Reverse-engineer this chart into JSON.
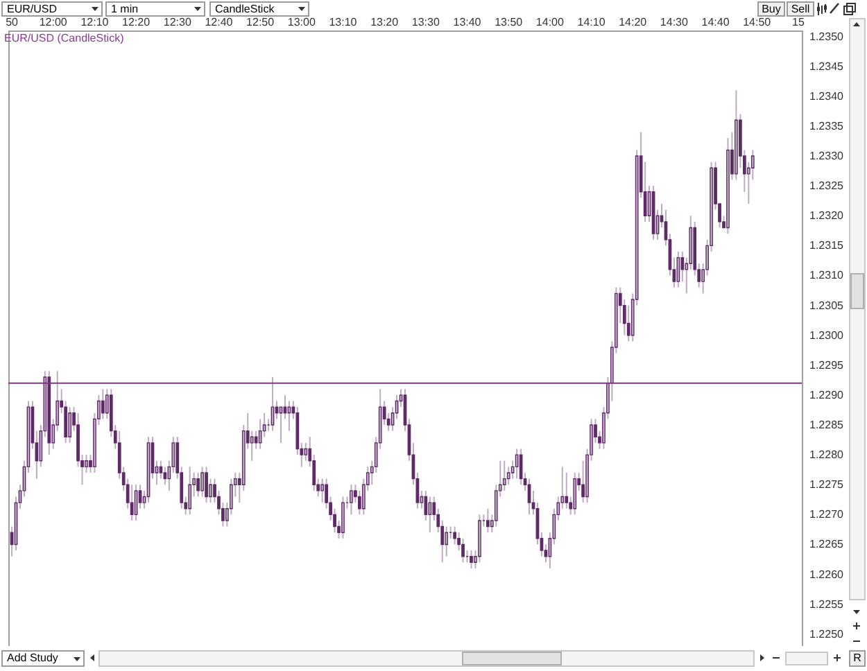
{
  "chart_data": {
    "type": "candlestick",
    "title": "EUR/USD (CandleStick)",
    "categories": [
      "50",
      null,
      null,
      null,
      null,
      null,
      null,
      null,
      null,
      null,
      "12:00",
      null,
      null,
      null,
      null,
      null,
      null,
      null,
      null,
      null,
      "12:10",
      null,
      null,
      null,
      null,
      null,
      null,
      null,
      null,
      null,
      "12:20",
      null,
      null,
      null,
      null,
      null,
      null,
      null,
      null,
      null,
      "12:30",
      null,
      null,
      null,
      null,
      null,
      null,
      null,
      null,
      null,
      "12:40",
      null,
      null,
      null,
      null,
      null,
      null,
      null,
      null,
      null,
      "12:50",
      null,
      null,
      null,
      null,
      null,
      null,
      null,
      null,
      null,
      "13:00",
      null,
      null,
      null,
      null,
      null,
      null,
      null,
      null,
      null,
      "13:10",
      null,
      null,
      null,
      null,
      null,
      null,
      null,
      null,
      null,
      "13:20",
      null,
      null,
      null,
      null,
      null,
      null,
      null,
      null,
      null,
      "13:30",
      null,
      null,
      null,
      null,
      null,
      null,
      null,
      null,
      null,
      "13:40",
      null,
      null,
      null,
      null,
      null,
      null,
      null,
      null,
      null,
      "13:50",
      null,
      null,
      null,
      null,
      null,
      null,
      null,
      null,
      null,
      "14:00",
      null,
      null,
      null,
      null,
      null,
      null,
      null,
      null,
      null,
      "14:10",
      null,
      null,
      null,
      null,
      null,
      null,
      null,
      null,
      null,
      "14:20",
      null,
      null,
      null,
      null,
      null,
      null,
      null,
      null,
      null,
      "14:30",
      null,
      null,
      null,
      null,
      null,
      null,
      null,
      null,
      null,
      "14:40",
      null,
      null,
      null,
      null,
      null,
      null,
      null,
      null,
      null,
      "14:50",
      null,
      null,
      null,
      null,
      null,
      null,
      null,
      null,
      null,
      "15"
    ],
    "ohlc": [
      [
        1.2267,
        1.2268,
        1.2263,
        1.2265
      ],
      [
        1.2265,
        1.2273,
        1.2264,
        1.2272
      ],
      [
        1.2272,
        1.2275,
        1.2271,
        1.2274
      ],
      [
        1.2274,
        1.2279,
        1.2273,
        1.2278
      ],
      [
        1.2278,
        1.2289,
        1.2277,
        1.2288
      ],
      [
        1.2288,
        1.2289,
        1.2281,
        1.2282
      ],
      [
        1.2282,
        1.2284,
        1.2276,
        1.2279
      ],
      [
        1.2279,
        1.2285,
        1.2278,
        1.2284
      ],
      [
        1.2284,
        1.2294,
        1.2283,
        1.2293
      ],
      [
        1.2293,
        1.2294,
        1.228,
        1.2282
      ],
      [
        1.2282,
        1.2286,
        1.2281,
        1.2285
      ],
      [
        1.2285,
        1.2294,
        1.2284,
        1.2289
      ],
      [
        1.2289,
        1.2291,
        1.2287,
        1.2288
      ],
      [
        1.2288,
        1.2289,
        1.2282,
        1.2283
      ],
      [
        1.2283,
        1.2288,
        1.2282,
        1.2287
      ],
      [
        1.2287,
        1.2288,
        1.2284,
        1.2285
      ],
      [
        1.2285,
        1.2287,
        1.2278,
        1.2279
      ],
      [
        1.2279,
        1.228,
        1.2275,
        1.2278
      ],
      [
        1.2278,
        1.228,
        1.2277,
        1.2279
      ],
      [
        1.2279,
        1.228,
        1.2277,
        1.2278
      ],
      [
        1.2278,
        1.2287,
        1.2277,
        1.2286
      ],
      [
        1.2286,
        1.229,
        1.2285,
        1.2289
      ],
      [
        1.2289,
        1.2291,
        1.2286,
        1.2287
      ],
      [
        1.2287,
        1.2291,
        1.2286,
        1.229
      ],
      [
        1.229,
        1.2291,
        1.2283,
        1.2284
      ],
      [
        1.2284,
        1.2285,
        1.2281,
        1.2282
      ],
      [
        1.2282,
        1.2284,
        1.2276,
        1.2277
      ],
      [
        1.2277,
        1.2278,
        1.2274,
        1.2275
      ],
      [
        1.2275,
        1.2276,
        1.2271,
        1.2272
      ],
      [
        1.2272,
        1.2275,
        1.2269,
        1.227
      ],
      [
        1.227,
        1.2275,
        1.2269,
        1.2274
      ],
      [
        1.2274,
        1.2275,
        1.2271,
        1.2272
      ],
      [
        1.2272,
        1.2274,
        1.2271,
        1.2273
      ],
      [
        1.2273,
        1.2283,
        1.2272,
        1.2282
      ],
      [
        1.2282,
        1.2283,
        1.2276,
        1.2277
      ],
      [
        1.2277,
        1.2279,
        1.2275,
        1.2278
      ],
      [
        1.2278,
        1.2279,
        1.2276,
        1.2277
      ],
      [
        1.2277,
        1.2278,
        1.2275,
        1.2276
      ],
      [
        1.2276,
        1.2279,
        1.2274,
        1.2278
      ],
      [
        1.2278,
        1.2283,
        1.2277,
        1.2282
      ],
      [
        1.2282,
        1.2283,
        1.2276,
        1.2277
      ],
      [
        1.2277,
        1.2278,
        1.2271,
        1.2272
      ],
      [
        1.2272,
        1.2273,
        1.227,
        1.2271
      ],
      [
        1.2271,
        1.2278,
        1.227,
        1.2275
      ],
      [
        1.2275,
        1.2277,
        1.2273,
        1.2276
      ],
      [
        1.2276,
        1.2277,
        1.2273,
        1.2274
      ],
      [
        1.2274,
        1.2278,
        1.2273,
        1.2277
      ],
      [
        1.2277,
        1.2278,
        1.2272,
        1.2273
      ],
      [
        1.2273,
        1.2276,
        1.2272,
        1.2275
      ],
      [
        1.2275,
        1.2276,
        1.2272,
        1.2273
      ],
      [
        1.2273,
        1.2274,
        1.227,
        1.2271
      ],
      [
        1.2271,
        1.2272,
        1.2268,
        1.2269
      ],
      [
        1.2269,
        1.2272,
        1.2268,
        1.2271
      ],
      [
        1.2271,
        1.2276,
        1.227,
        1.2275
      ],
      [
        1.2275,
        1.2277,
        1.2273,
        1.2276
      ],
      [
        1.2276,
        1.2277,
        1.2272,
        1.2275
      ],
      [
        1.2275,
        1.2285,
        1.2274,
        1.2284
      ],
      [
        1.2284,
        1.2287,
        1.2281,
        1.2282
      ],
      [
        1.2282,
        1.2284,
        1.2279,
        1.2283
      ],
      [
        1.2283,
        1.2284,
        1.2281,
        1.2282
      ],
      [
        1.2282,
        1.2286,
        1.2281,
        1.2284
      ],
      [
        1.2284,
        1.2287,
        1.2283,
        1.2285
      ],
      [
        1.2285,
        1.2286,
        1.2284,
        1.2285
      ],
      [
        1.2285,
        1.2293,
        1.2284,
        1.2288
      ],
      [
        1.2288,
        1.2289,
        1.2286,
        1.2287
      ],
      [
        1.2287,
        1.2288,
        1.2282,
        1.2288
      ],
      [
        1.2288,
        1.229,
        1.2286,
        1.2287
      ],
      [
        1.2287,
        1.2289,
        1.2284,
        1.2288
      ],
      [
        1.2288,
        1.2289,
        1.2286,
        1.2287
      ],
      [
        1.2287,
        1.2288,
        1.228,
        1.2281
      ],
      [
        1.2281,
        1.2282,
        1.2278,
        1.228
      ],
      [
        1.228,
        1.2282,
        1.2279,
        1.2281
      ],
      [
        1.2281,
        1.2283,
        1.2278,
        1.2279
      ],
      [
        1.2279,
        1.228,
        1.2274,
        1.2275
      ],
      [
        1.2275,
        1.2276,
        1.2273,
        1.2274
      ],
      [
        1.2274,
        1.2276,
        1.2272,
        1.2275
      ],
      [
        1.2275,
        1.2276,
        1.2271,
        1.2272
      ],
      [
        1.2272,
        1.2273,
        1.2269,
        1.227
      ],
      [
        1.227,
        1.2271,
        1.2267,
        1.2268
      ],
      [
        1.2268,
        1.2269,
        1.2266,
        1.2267
      ],
      [
        1.2267,
        1.2273,
        1.2266,
        1.2272
      ],
      [
        1.2272,
        1.2273,
        1.2271,
        1.2272
      ],
      [
        1.2272,
        1.2275,
        1.227,
        1.2274
      ],
      [
        1.2274,
        1.2275,
        1.2272,
        1.2273
      ],
      [
        1.2273,
        1.2274,
        1.227,
        1.2271
      ],
      [
        1.2271,
        1.2276,
        1.227,
        1.2275
      ],
      [
        1.2275,
        1.2278,
        1.2274,
        1.2277
      ],
      [
        1.2277,
        1.2279,
        1.2275,
        1.2278
      ],
      [
        1.2278,
        1.2283,
        1.2277,
        1.2282
      ],
      [
        1.2282,
        1.2291,
        1.2281,
        1.2288
      ],
      [
        1.2288,
        1.2289,
        1.2285,
        1.2286
      ],
      [
        1.2286,
        1.2287,
        1.2284,
        1.2285
      ],
      [
        1.2285,
        1.2288,
        1.2284,
        1.2287
      ],
      [
        1.2287,
        1.229,
        1.2286,
        1.2289
      ],
      [
        1.2289,
        1.2291,
        1.2288,
        1.229
      ],
      [
        1.229,
        1.2291,
        1.2284,
        1.2285
      ],
      [
        1.2285,
        1.2286,
        1.2279,
        1.228
      ],
      [
        1.228,
        1.2282,
        1.2275,
        1.2276
      ],
      [
        1.2276,
        1.2277,
        1.2271,
        1.2272
      ],
      [
        1.2272,
        1.2274,
        1.2271,
        1.2273
      ],
      [
        1.2273,
        1.2274,
        1.2269,
        1.227
      ],
      [
        1.227,
        1.2273,
        1.2267,
        1.2272
      ],
      [
        1.2272,
        1.2273,
        1.2269,
        1.227
      ],
      [
        1.227,
        1.2271,
        1.2267,
        1.2268
      ],
      [
        1.2268,
        1.2269,
        1.2262,
        1.2265
      ],
      [
        1.2265,
        1.2268,
        1.2263,
        1.2267
      ],
      [
        1.2267,
        1.2268,
        1.2266,
        1.2267
      ],
      [
        1.2267,
        1.2268,
        1.2265,
        1.2266
      ],
      [
        1.2266,
        1.2267,
        1.2264,
        1.2265
      ],
      [
        1.2265,
        1.2266,
        1.2262,
        1.2263
      ],
      [
        1.2263,
        1.2264,
        1.2262,
        1.2263
      ],
      [
        1.2263,
        1.2264,
        1.2261,
        1.2262
      ],
      [
        1.2262,
        1.2264,
        1.2261,
        1.2263
      ],
      [
        1.2263,
        1.227,
        1.2262,
        1.2269
      ],
      [
        1.2269,
        1.227,
        1.2268,
        1.2269
      ],
      [
        1.2269,
        1.2271,
        1.2267,
        1.2268
      ],
      [
        1.2268,
        1.227,
        1.2267,
        1.2269
      ],
      [
        1.2269,
        1.2275,
        1.2268,
        1.2274
      ],
      [
        1.2274,
        1.2279,
        1.2273,
        1.2275
      ],
      [
        1.2275,
        1.2279,
        1.2274,
        1.2276
      ],
      [
        1.2276,
        1.2278,
        1.2275,
        1.2277
      ],
      [
        1.2277,
        1.2279,
        1.2276,
        1.2278
      ],
      [
        1.2278,
        1.2281,
        1.2276,
        1.228
      ],
      [
        1.228,
        1.2281,
        1.2275,
        1.2276
      ],
      [
        1.2276,
        1.2277,
        1.2274,
        1.2275
      ],
      [
        1.2275,
        1.2276,
        1.227,
        1.2272
      ],
      [
        1.2272,
        1.2274,
        1.227,
        1.2271
      ],
      [
        1.2271,
        1.2272,
        1.2265,
        1.2266
      ],
      [
        1.2266,
        1.2267,
        1.2263,
        1.2264
      ],
      [
        1.2264,
        1.2265,
        1.2262,
        1.2263
      ],
      [
        1.2263,
        1.2267,
        1.2261,
        1.2266
      ],
      [
        1.2266,
        1.2271,
        1.2265,
        1.227
      ],
      [
        1.227,
        1.2273,
        1.2269,
        1.2272
      ],
      [
        1.2272,
        1.2278,
        1.2271,
        1.2273
      ],
      [
        1.2273,
        1.2277,
        1.2271,
        1.2272
      ],
      [
        1.2272,
        1.2273,
        1.227,
        1.2271
      ],
      [
        1.2271,
        1.2277,
        1.227,
        1.2276
      ],
      [
        1.2276,
        1.2277,
        1.2274,
        1.2275
      ],
      [
        1.2275,
        1.2279,
        1.2272,
        1.2273
      ],
      [
        1.2273,
        1.2281,
        1.2272,
        1.228
      ],
      [
        1.228,
        1.2286,
        1.2279,
        1.2285
      ],
      [
        1.2285,
        1.2286,
        1.2282,
        1.2283
      ],
      [
        1.2283,
        1.2284,
        1.2281,
        1.2282
      ],
      [
        1.2282,
        1.2288,
        1.2281,
        1.2287
      ],
      [
        1.2287,
        1.2293,
        1.2286,
        1.2292
      ],
      [
        1.2292,
        1.2299,
        1.2289,
        1.2298
      ],
      [
        1.2298,
        1.2308,
        1.2297,
        1.2307
      ],
      [
        1.2307,
        1.2308,
        1.2302,
        1.2305
      ],
      [
        1.2305,
        1.2306,
        1.23,
        1.2302
      ],
      [
        1.2302,
        1.2305,
        1.2299,
        1.23
      ],
      [
        1.23,
        1.2307,
        1.2299,
        1.2306
      ],
      [
        1.2306,
        1.2331,
        1.2305,
        1.233
      ],
      [
        1.233,
        1.2334,
        1.2323,
        1.2324
      ],
      [
        1.2324,
        1.2329,
        1.2319,
        1.232
      ],
      [
        1.232,
        1.2325,
        1.2319,
        1.2324
      ],
      [
        1.2324,
        1.2325,
        1.2316,
        1.2317
      ],
      [
        1.2317,
        1.2321,
        1.2316,
        1.232
      ],
      [
        1.232,
        1.2322,
        1.2318,
        1.2319
      ],
      [
        1.2319,
        1.2321,
        1.2315,
        1.2316
      ],
      [
        1.2316,
        1.2317,
        1.231,
        1.2311
      ],
      [
        1.2311,
        1.2313,
        1.2308,
        1.2309
      ],
      [
        1.2309,
        1.2314,
        1.2308,
        1.2313
      ],
      [
        1.2313,
        1.2314,
        1.2309,
        1.2311
      ],
      [
        1.2311,
        1.2313,
        1.2307,
        1.2312
      ],
      [
        1.2312,
        1.232,
        1.2311,
        1.2318
      ],
      [
        1.2318,
        1.2319,
        1.231,
        1.2311
      ],
      [
        1.2311,
        1.2312,
        1.2308,
        1.2309
      ],
      [
        1.2309,
        1.2312,
        1.2307,
        1.2311
      ],
      [
        1.2311,
        1.2316,
        1.231,
        1.2315
      ],
      [
        1.2315,
        1.2329,
        1.2314,
        1.2328
      ],
      [
        1.2328,
        1.2329,
        1.2321,
        1.2322
      ],
      [
        1.2322,
        1.2322,
        1.2318,
        1.2319
      ],
      [
        1.2319,
        1.232,
        1.2318,
        1.2318
      ],
      [
        1.2318,
        1.2333,
        1.2317,
        1.2331
      ],
      [
        1.2331,
        1.2334,
        1.2326,
        1.2327
      ],
      [
        1.2327,
        1.2341,
        1.2326,
        1.2336
      ],
      [
        1.2336,
        1.2337,
        1.2328,
        1.233
      ],
      [
        1.233,
        1.2331,
        1.2324,
        1.2327
      ],
      [
        1.2327,
        1.2329,
        1.2322,
        1.2328
      ],
      [
        1.2328,
        1.2331,
        1.2326,
        1.233
      ],
      null,
      null,
      null,
      null,
      null,
      null,
      null,
      null,
      null,
      null,
      null
    ],
    "color": "#5f2a68",
    "ylim": [
      1.2248,
      1.2351
    ],
    "yticks": [
      {
        "value": 1.225,
        "label": "1.2250"
      },
      1.2255,
      {
        "value": 1.226,
        "label": "1.2260"
      },
      1.2265,
      {
        "value": 1.227,
        "label": "1.2270"
      },
      1.2275,
      {
        "value": 1.228,
        "label": "1.2280"
      },
      1.2285,
      {
        "value": 1.229,
        "label": "1.2290"
      },
      1.2295,
      {
        "value": 1.23,
        "label": "1.2300"
      },
      1.2305,
      {
        "value": 1.231,
        "label": "1.2310"
      },
      1.2315,
      {
        "value": 1.232,
        "label": "1.2320"
      },
      1.2325,
      {
        "value": 1.233,
        "label": "1.2330"
      },
      1.2335,
      {
        "value": 1.234,
        "label": "1.2340"
      },
      1.2345,
      {
        "value": 1.235,
        "label": "1.2350"
      }
    ],
    "ref_lines": [
      {
        "axis": "y",
        "value": 1.2292,
        "color": "#7a3a80"
      }
    ],
    "annotations": [
      "EUR/USD",
      "1 min",
      "CandleStick",
      "Buy",
      "Sell",
      "Add Study",
      "R"
    ]
  }
}
